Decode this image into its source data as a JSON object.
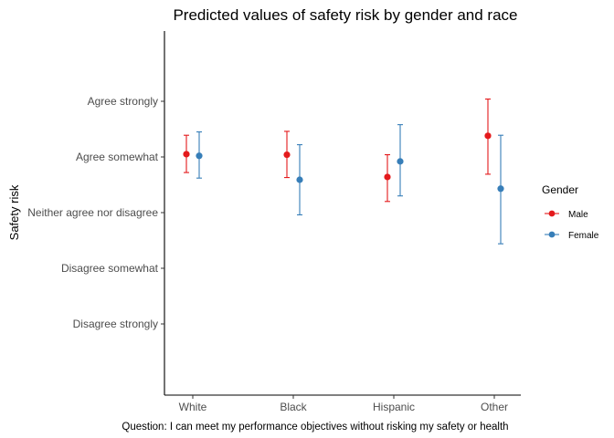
{
  "chart_data": {
    "type": "scatter",
    "title": "Predicted values of safety risk by gender and race",
    "xlabel": "Question: I can meet my performance objectives without risking my safety or health",
    "ylabel": "Safety risk",
    "categories": [
      "White",
      "Black",
      "Hispanic",
      "Other"
    ],
    "y_tick_values": [
      1,
      2,
      3,
      4,
      5
    ],
    "y_tick_labels": [
      "Disagree strongly",
      "Disagree somewhat",
      "Neither agree nor disagree",
      "Agree somewhat",
      "Agree strongly"
    ],
    "ylim": [
      0.8,
      6.2
    ],
    "grid": false,
    "legend_title": "Gender",
    "legend_position": "right",
    "series": [
      {
        "name": "Male",
        "color": "#E41A1C",
        "values": [
          4.05,
          4.04,
          3.64,
          4.38
        ],
        "lower": [
          3.72,
          3.63,
          3.2,
          3.69
        ],
        "upper": [
          4.39,
          4.46,
          4.04,
          5.04
        ]
      },
      {
        "name": "Female",
        "color": "#377EB8",
        "values": [
          4.02,
          3.59,
          3.92,
          3.43
        ],
        "lower": [
          3.62,
          2.96,
          3.3,
          2.44
        ],
        "upper": [
          4.45,
          4.22,
          4.58,
          4.39
        ]
      }
    ]
  }
}
